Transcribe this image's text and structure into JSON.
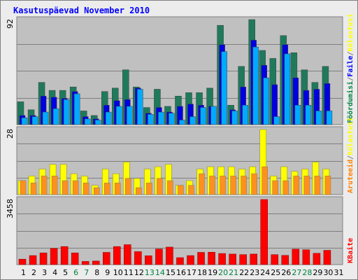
{
  "title": "Kasutuspäevad November 2010",
  "chart_data": [
    {
      "type": "bar",
      "name": "traffic-top",
      "y_max_label": "92",
      "ylim": [
        0,
        92
      ],
      "legend": [
        {
          "text": "Pöördumisi",
          "color": "#008040"
        },
        {
          "text": "/",
          "color": "#7f7f7f"
        },
        {
          "text": "Faile",
          "color": "#0000ff"
        },
        {
          "text": "/",
          "color": "#7f7f7f"
        },
        {
          "text": "Külastusi",
          "color": "#ffff00"
        }
      ],
      "categories": [
        "1",
        "2",
        "3",
        "4",
        "5",
        "6",
        "7",
        "8",
        "9",
        "10",
        "11",
        "12",
        "13",
        "14",
        "15",
        "16",
        "17",
        "18",
        "19",
        "20",
        "21",
        "22",
        "23",
        "24",
        "25",
        "26",
        "27",
        "28",
        "29",
        "30",
        "31"
      ],
      "series": [
        {
          "name": "Pöördumisi",
          "color": "#1f7a5c",
          "values": [
            20,
            13,
            37,
            30,
            30,
            33,
            12,
            8,
            29,
            32,
            48,
            33,
            15,
            31,
            16,
            25,
            28,
            28,
            32,
            87,
            17,
            51,
            92,
            65,
            58,
            78,
            63,
            48,
            37,
            51,
            0
          ]
        },
        {
          "name": "Faile",
          "color": "#0000e0",
          "values": [
            8,
            8,
            25,
            24,
            23,
            29,
            7,
            5,
            17,
            21,
            22,
            32,
            10,
            15,
            11,
            16,
            18,
            17,
            16,
            70,
            13,
            33,
            74,
            52,
            35,
            70,
            41,
            30,
            31,
            36,
            0
          ]
        },
        {
          "name": "Külastusi",
          "color": "#00aaff",
          "values": [
            6,
            7,
            11,
            14,
            22,
            27,
            5,
            4,
            11,
            16,
            16,
            31,
            9,
            11,
            10,
            4,
            7,
            15,
            16,
            64,
            12,
            17,
            68,
            41,
            7,
            62,
            17,
            17,
            12,
            12,
            0
          ]
        }
      ]
    },
    {
      "type": "bar",
      "name": "visits-middle",
      "y_max_label": "28",
      "ylim": [
        0,
        28
      ],
      "legend": [
        {
          "text": "Aruteeid",
          "color": "#ff8000"
        },
        {
          "text": "/",
          "color": "#7f7f7f"
        },
        {
          "text": "Külastusi",
          "color": "#ffff00"
        }
      ],
      "categories": [
        "1",
        "2",
        "3",
        "4",
        "5",
        "6",
        "7",
        "8",
        "9",
        "10",
        "11",
        "12",
        "13",
        "14",
        "15",
        "16",
        "17",
        "18",
        "19",
        "20",
        "21",
        "22",
        "23",
        "24",
        "25",
        "26",
        "27",
        "28",
        "29",
        "30",
        "31"
      ],
      "series": [
        {
          "name": "Külastusi",
          "color": "#ffff00",
          "values": [
            6,
            8,
            11,
            13,
            13,
            9,
            8,
            4,
            11,
            9,
            14,
            7,
            11,
            12,
            13,
            4,
            6,
            11,
            12,
            12,
            12,
            11,
            12,
            28,
            8,
            12,
            10,
            11,
            14,
            11,
            0
          ]
        },
        {
          "name": "Aruteeid",
          "color": "#ff9020",
          "values": [
            6,
            5,
            8,
            8,
            6,
            6,
            5,
            3,
            5,
            5,
            7,
            3,
            5,
            7,
            6,
            4,
            4,
            9,
            8,
            8,
            8,
            8,
            9,
            12,
            6,
            6,
            8,
            8,
            8,
            8,
            0
          ]
        }
      ]
    },
    {
      "type": "bar",
      "name": "kbytes-bottom",
      "y_max_label": "3458",
      "ylim": [
        0,
        3458
      ],
      "legend": [
        {
          "text": "KBaite",
          "color": "#ff0000"
        }
      ],
      "categories": [
        "1",
        "2",
        "3",
        "4",
        "5",
        "6",
        "7",
        "8",
        "9",
        "10",
        "11",
        "12",
        "13",
        "14",
        "15",
        "16",
        "17",
        "18",
        "19",
        "20",
        "21",
        "22",
        "23",
        "24",
        "25",
        "26",
        "27",
        "28",
        "29",
        "30",
        "31"
      ],
      "series": [
        {
          "name": "KBaite",
          "color": "#ff0000",
          "values": [
            290,
            480,
            620,
            860,
            960,
            620,
            170,
            190,
            650,
            960,
            1060,
            690,
            470,
            830,
            930,
            370,
            480,
            650,
            660,
            590,
            560,
            530,
            560,
            3458,
            530,
            490,
            820,
            790,
            600,
            760,
            0
          ]
        }
      ]
    }
  ],
  "x_label_colors": {
    "weekday": "#000000",
    "weekend": "#008040"
  },
  "weekend_days": [
    "6",
    "7",
    "13",
    "14",
    "20",
    "21",
    "27",
    "28"
  ]
}
